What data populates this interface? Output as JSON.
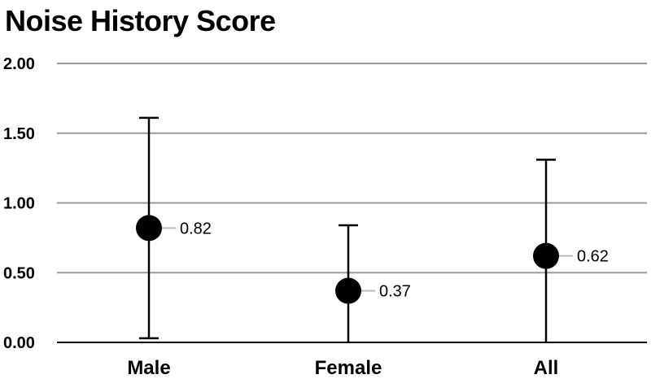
{
  "chart_data": {
    "type": "scatter",
    "title": "Noise History Score",
    "xlabel": "",
    "ylabel": "",
    "ylim": [
      0,
      2
    ],
    "yticks": [
      "0.00",
      "0.50",
      "1.00",
      "1.50",
      "2.00"
    ],
    "grid": true,
    "categories": [
      "Male",
      "Female",
      "All"
    ],
    "values": [
      0.82,
      0.37,
      0.62
    ],
    "value_labels": [
      "0.82",
      "0.37",
      "0.62"
    ],
    "error_low": [
      0.03,
      0.0,
      0.0
    ],
    "error_high": [
      1.61,
      0.84,
      1.31
    ],
    "colors": {
      "marker": "#000000",
      "grid": "#9a9a9a",
      "axis": "#000000",
      "leader": "#bbbbbb"
    }
  }
}
